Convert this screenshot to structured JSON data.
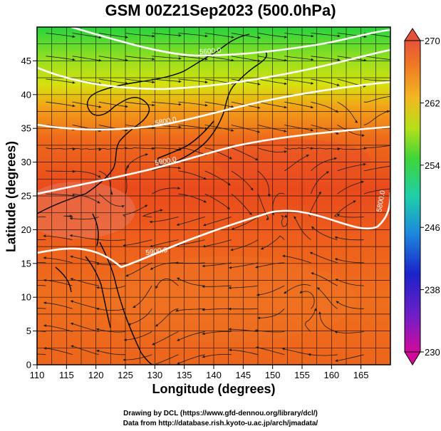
{
  "title": "GSM 00Z21Sep2023 (500.0hPa)",
  "xaxis": {
    "label": "Longitude (degrees)",
    "ticks": [
      110,
      115,
      120,
      125,
      130,
      135,
      140,
      145,
      150,
      155,
      160,
      165
    ],
    "range": [
      110,
      170
    ]
  },
  "yaxis": {
    "label": "Latitude  (degrees)",
    "ticks": [
      0,
      5,
      10,
      15,
      20,
      25,
      30,
      35,
      40,
      45
    ],
    "range": [
      0,
      50
    ]
  },
  "colorbar": {
    "ticks": [
      230,
      238,
      246,
      254,
      262,
      270
    ],
    "range": [
      230,
      270
    ],
    "colors": [
      "#cc0099",
      "#1a1acc",
      "#1f9ed6",
      "#2fd65c",
      "#b8e619",
      "#f5a623",
      "#e83a1e"
    ]
  },
  "contours": [
    {
      "label": "5600.0"
    },
    {
      "label": "5800.0"
    },
    {
      "label": "5900.0"
    },
    {
      "label": "5900.0"
    },
    {
      "label": "5800.0"
    }
  ],
  "credits": {
    "line1": "Drawing by DCL (https://www.gfd-dennou.org/library/dcl/)",
    "line2": "Data from http://database.rish.kyoto-u.ac.jp/arch/jmadata/"
  },
  "chart_data": {
    "type": "heatmap",
    "title": "GSM 00Z21Sep2023 (500.0hPa)",
    "xlabel": "Longitude (degrees)",
    "ylabel": "Latitude  (degrees)",
    "xlim": [
      110,
      170
    ],
    "ylim": [
      0,
      50
    ],
    "colorbar_range": [
      230,
      270
    ],
    "colorbar_ticks": [
      230,
      238,
      246,
      254,
      262,
      270
    ],
    "overlays": [
      "geopotential height contours",
      "wind streamlines",
      "coastlines",
      "grid"
    ],
    "contour_labels": [
      "5600.0",
      "5800.0",
      "5900.0",
      "5900.0",
      "5800.0"
    ]
  }
}
